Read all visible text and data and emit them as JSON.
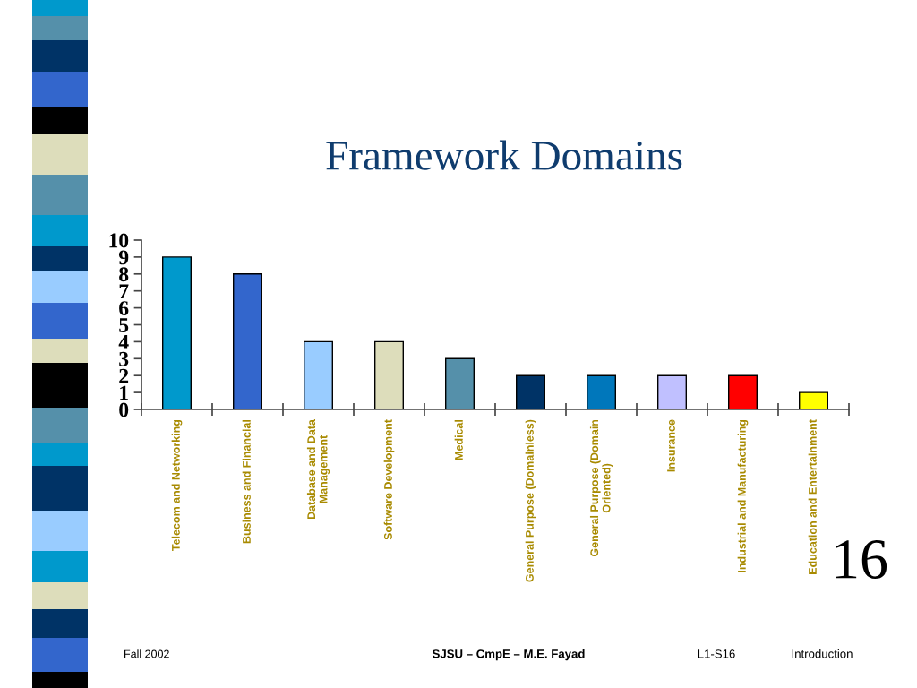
{
  "chart_data": {
    "type": "bar",
    "title": "Framework Domains",
    "categories": [
      "Telecom and Networking",
      "Business and Financial",
      "Database and Data\nManagement",
      "Software Development",
      "Medical",
      "General Purpose (Domainless)",
      "General Purpose (Domain\nOriented)",
      "Insurance",
      "Industrial and Manufacturing",
      "Education and Entertainment"
    ],
    "values": [
      9,
      8,
      4,
      4,
      3,
      2,
      2,
      2,
      2,
      1
    ],
    "colors": [
      "#0099cc",
      "#3366cc",
      "#99ccff",
      "#ddddbb",
      "#5590aa",
      "#003366",
      "#0077bb",
      "#c0c0ff",
      "#ff0000",
      "#ffff00"
    ],
    "ylim": [
      0,
      10
    ],
    "yticks": [
      0,
      1,
      2,
      3,
      4,
      5,
      6,
      7,
      8,
      9,
      10
    ],
    "annotations": [
      "16",
      "Fall 2002",
      "SJSU – CmpE – M.E. Fayad",
      "L1-S16",
      "Introduction"
    ]
  }
}
